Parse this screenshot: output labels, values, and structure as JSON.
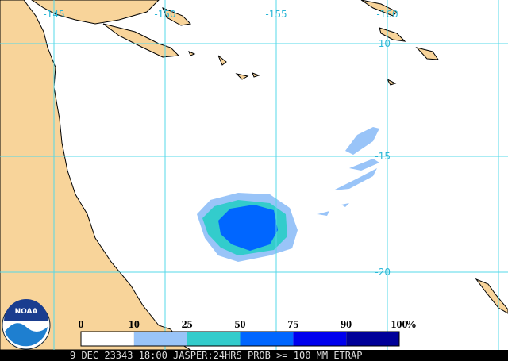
{
  "map": {
    "lon_labels": [
      "-145",
      "-150",
      "-155",
      "-160"
    ],
    "lat_labels": [
      "-10",
      "-15",
      "-20"
    ]
  },
  "legend": {
    "labels": [
      "0",
      "10",
      "25",
      "50",
      "75",
      "90",
      "100"
    ],
    "unit": "%",
    "colors": [
      "#ffffff",
      "#99c4f8",
      "#33cccc",
      "#0066ff",
      "#0000ee",
      "#000099"
    ]
  },
  "logo": "NOAA",
  "footer": "9 DEC 23343 18:00 JASPER:24HRS PROB >= 100 MM ETRAP"
}
